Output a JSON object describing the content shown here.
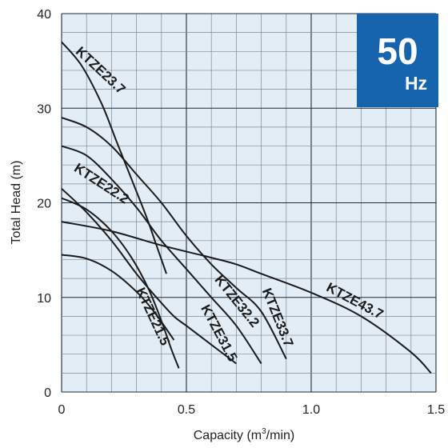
{
  "chart_data": {
    "type": "line",
    "xlabel_main": "Capacity (m",
    "xlabel_sup": "3",
    "xlabel_end": "/min)",
    "ylabel": "Total Head (m)",
    "xlim": [
      0,
      1.5
    ],
    "ylim": [
      0,
      40
    ],
    "grid": true,
    "x_ticks": [
      "0",
      "0.5",
      "1.0",
      "1.5"
    ],
    "y_ticks": [
      "0",
      "10",
      "20",
      "30",
      "40"
    ],
    "badge": {
      "value": "50",
      "unit": "Hz",
      "color": "#1663ae"
    },
    "plot_background": "#e3edf6",
    "series": [
      {
        "name": "KTZE21.5",
        "points": [
          [
            0,
            14.5
          ],
          [
            0.1,
            14.1
          ],
          [
            0.2,
            12.8
          ],
          [
            0.3,
            10.6
          ],
          [
            0.37,
            8.5
          ],
          [
            0.45,
            5.5
          ]
        ]
      },
      {
        "name": "KTZE22.2",
        "points": [
          [
            0,
            20.5
          ],
          [
            0.1,
            19.3
          ],
          [
            0.2,
            17.0
          ],
          [
            0.28,
            14.2
          ],
          [
            0.35,
            10.8
          ],
          [
            0.4,
            7.5
          ],
          [
            0.44,
            4.5
          ],
          [
            0.47,
            2.5
          ]
        ]
      },
      {
        "name": "KTZE23.7",
        "points": [
          [
            0,
            37.0
          ],
          [
            0.08,
            34.5
          ],
          [
            0.16,
            30.5
          ],
          [
            0.22,
            26.5
          ],
          [
            0.28,
            22.5
          ],
          [
            0.34,
            18.5
          ],
          [
            0.38,
            15.5
          ],
          [
            0.4,
            14.0
          ],
          [
            0.42,
            12.5
          ]
        ]
      },
      {
        "name": "KTZE31.5",
        "points": [
          [
            0,
            21.5
          ],
          [
            0.1,
            19.0
          ],
          [
            0.2,
            16.0
          ],
          [
            0.3,
            12.5
          ],
          [
            0.38,
            10.0
          ],
          [
            0.45,
            8.0
          ],
          [
            0.5,
            7.0
          ],
          [
            0.6,
            5.0
          ],
          [
            0.7,
            3.0
          ]
        ]
      },
      {
        "name": "KTZE32.2",
        "points": [
          [
            0,
            26.0
          ],
          [
            0.1,
            25.0
          ],
          [
            0.2,
            22.5
          ],
          [
            0.3,
            19.5
          ],
          [
            0.4,
            16.0
          ],
          [
            0.5,
            13.0
          ],
          [
            0.6,
            10.0
          ],
          [
            0.7,
            7.0
          ],
          [
            0.8,
            3.0
          ]
        ]
      },
      {
        "name": "KTZE33.7",
        "points": [
          [
            0,
            29.0
          ],
          [
            0.1,
            28.0
          ],
          [
            0.2,
            26.0
          ],
          [
            0.3,
            23.0
          ],
          [
            0.4,
            20.0
          ],
          [
            0.5,
            16.5
          ],
          [
            0.6,
            13.5
          ],
          [
            0.7,
            11.0
          ],
          [
            0.8,
            8.5
          ],
          [
            0.9,
            3.5
          ]
        ]
      },
      {
        "name": "KTZE43.7",
        "points": [
          [
            0,
            18.0
          ],
          [
            0.2,
            17.0
          ],
          [
            0.4,
            15.5
          ],
          [
            0.6,
            14.2
          ],
          [
            0.7,
            13.5
          ],
          [
            0.8,
            12.5
          ],
          [
            1.0,
            10.5
          ],
          [
            1.2,
            8.0
          ],
          [
            1.4,
            4.2
          ],
          [
            1.48,
            2.0
          ]
        ]
      }
    ]
  }
}
